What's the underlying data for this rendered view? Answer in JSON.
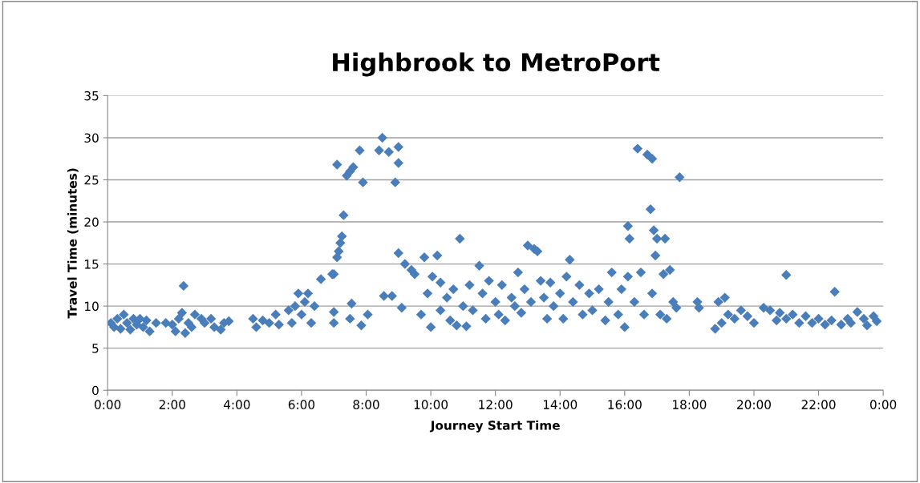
{
  "chart_data": {
    "type": "scatter",
    "title": "Highbrook to MetroPort",
    "xlabel": "Journey Start Time",
    "ylabel": "Travel Time (minutes)",
    "xlim": [
      0,
      24
    ],
    "xticks": [
      {
        "value": 0,
        "label": "0:00"
      },
      {
        "value": 2,
        "label": "2:00"
      },
      {
        "value": 4,
        "label": "4:00"
      },
      {
        "value": 6,
        "label": "6:00"
      },
      {
        "value": 8,
        "label": "8:00"
      },
      {
        "value": 10,
        "label": "10:00"
      },
      {
        "value": 12,
        "label": "12:00"
      },
      {
        "value": 14,
        "label": "14:00"
      },
      {
        "value": 16,
        "label": "16:00"
      },
      {
        "value": 18,
        "label": "18:00"
      },
      {
        "value": 20,
        "label": "20:00"
      },
      {
        "value": 22,
        "label": "22:00"
      },
      {
        "value": 24,
        "label": "0:00"
      }
    ],
    "ylim": [
      0,
      35
    ],
    "yticks": [
      0,
      5,
      10,
      15,
      20,
      25,
      30,
      35
    ],
    "grid": "y",
    "marker": "diamond",
    "legend": false,
    "series": [
      {
        "color": "#4a7ebb",
        "x": [
          0.1,
          0.2,
          0.3,
          0.4,
          0.5,
          0.6,
          0.7,
          0.8,
          0.9,
          1.0,
          1.1,
          1.2,
          1.3,
          1.5,
          1.8,
          2.0,
          2.1,
          2.2,
          2.3,
          2.35,
          2.4,
          2.5,
          2.6,
          2.7,
          2.9,
          3.0,
          3.2,
          3.3,
          3.5,
          3.6,
          3.75,
          4.5,
          4.6,
          4.8,
          5.0,
          5.2,
          5.3,
          5.6,
          5.7,
          5.8,
          5.9,
          6.0,
          6.1,
          6.2,
          6.3,
          6.4,
          6.6,
          6.95,
          7.1,
          7.3,
          7.25,
          7.2,
          7.15,
          7.1,
          7.0,
          7.0,
          7.0,
          7.4,
          7.5,
          7.6,
          7.55,
          7.5,
          7.8,
          7.9,
          7.85,
          8.05,
          8.5,
          8.4,
          8.7,
          8.55,
          8.8,
          9.0,
          9.0,
          8.9,
          9.0,
          9.1,
          9.2,
          9.4,
          9.5,
          9.8,
          9.7,
          9.9,
          10.0,
          10.05,
          10.2,
          10.3,
          10.3,
          10.5,
          10.6,
          10.7,
          10.8,
          10.9,
          11.0,
          11.1,
          11.2,
          11.3,
          11.5,
          11.6,
          11.7,
          11.8,
          12.0,
          12.1,
          12.2,
          12.3,
          12.5,
          12.6,
          12.7,
          12.8,
          12.9,
          13.0,
          13.1,
          13.2,
          13.3,
          13.4,
          13.5,
          13.6,
          13.7,
          13.8,
          14.0,
          14.1,
          14.2,
          14.3,
          14.4,
          14.6,
          14.7,
          14.9,
          15.0,
          15.2,
          15.4,
          15.5,
          15.6,
          15.8,
          15.9,
          16.0,
          16.1,
          16.15,
          16.1,
          16.3,
          16.4,
          16.5,
          16.6,
          16.7,
          16.8,
          16.85,
          16.9,
          17.0,
          16.85,
          16.95,
          17.1,
          17.2,
          17.25,
          17.3,
          17.4,
          17.6,
          17.5,
          17.7,
          18.25,
          18.3,
          18.8,
          18.9,
          19.0,
          19.1,
          19.2,
          19.4,
          19.6,
          19.8,
          20.0,
          20.3,
          20.5,
          20.7,
          20.8,
          21.0,
          21.0,
          21.2,
          21.4,
          21.6,
          21.8,
          22.0,
          22.2,
          22.4,
          22.5,
          22.7,
          22.9,
          23.0,
          23.2,
          23.4,
          23.5,
          23.7,
          23.8
        ],
        "values": [
          8,
          7.5,
          8.5,
          7.3,
          9,
          8,
          7.2,
          8.5,
          7.8,
          8.5,
          7.5,
          8.3,
          7,
          8,
          8,
          7.8,
          7,
          8.5,
          9.2,
          12.4,
          6.8,
          8,
          7.5,
          9,
          8.5,
          8,
          8.5,
          7.5,
          7.2,
          8,
          8.2,
          8.5,
          7.5,
          8.3,
          8,
          9,
          7.8,
          9.5,
          8,
          10,
          11.5,
          9,
          10.5,
          11.5,
          8,
          10,
          13.2,
          13.8,
          26.8,
          20.8,
          18.3,
          17.5,
          16.5,
          15.8,
          13.8,
          9.3,
          8,
          25.5,
          26,
          26.5,
          10.3,
          8.5,
          28.5,
          24.7,
          7.7,
          9,
          30,
          28.5,
          28.3,
          11.2,
          11.2,
          28.9,
          27,
          24.7,
          16.3,
          9.8,
          15,
          14.3,
          13.8,
          15.8,
          9,
          11.5,
          7.5,
          13.5,
          16,
          12.8,
          9.5,
          11,
          8.3,
          12,
          7.7,
          18,
          10,
          7.6,
          12.5,
          9.5,
          14.8,
          11.5,
          8.5,
          13,
          10.5,
          9,
          12.5,
          8.3,
          11,
          10,
          14,
          9.2,
          12,
          17.2,
          10.5,
          16.8,
          16.5,
          13,
          11,
          8.5,
          12.8,
          10,
          11.5,
          8.5,
          13.5,
          15.5,
          10.5,
          12.5,
          9,
          11.5,
          9.5,
          12,
          8.3,
          10.5,
          14,
          9,
          12,
          7.5,
          19.5,
          18,
          13.5,
          10.5,
          28.7,
          14,
          9,
          28,
          21.5,
          27.5,
          19,
          18,
          11.5,
          16,
          9,
          13.8,
          18,
          8.5,
          14.3,
          9.8,
          10.5,
          25.3,
          10.5,
          9.8,
          7.3,
          10.5,
          8,
          11,
          9,
          8.5,
          9.5,
          8.8,
          8,
          9.8,
          9.5,
          8.3,
          9.2,
          13.7,
          8.5,
          9,
          8,
          8.8,
          8,
          8.5,
          7.8,
          8.3,
          11.7,
          7.8,
          8.5,
          8,
          9.3,
          8.5,
          7.7,
          8.8,
          8.2
        ]
      }
    ]
  }
}
